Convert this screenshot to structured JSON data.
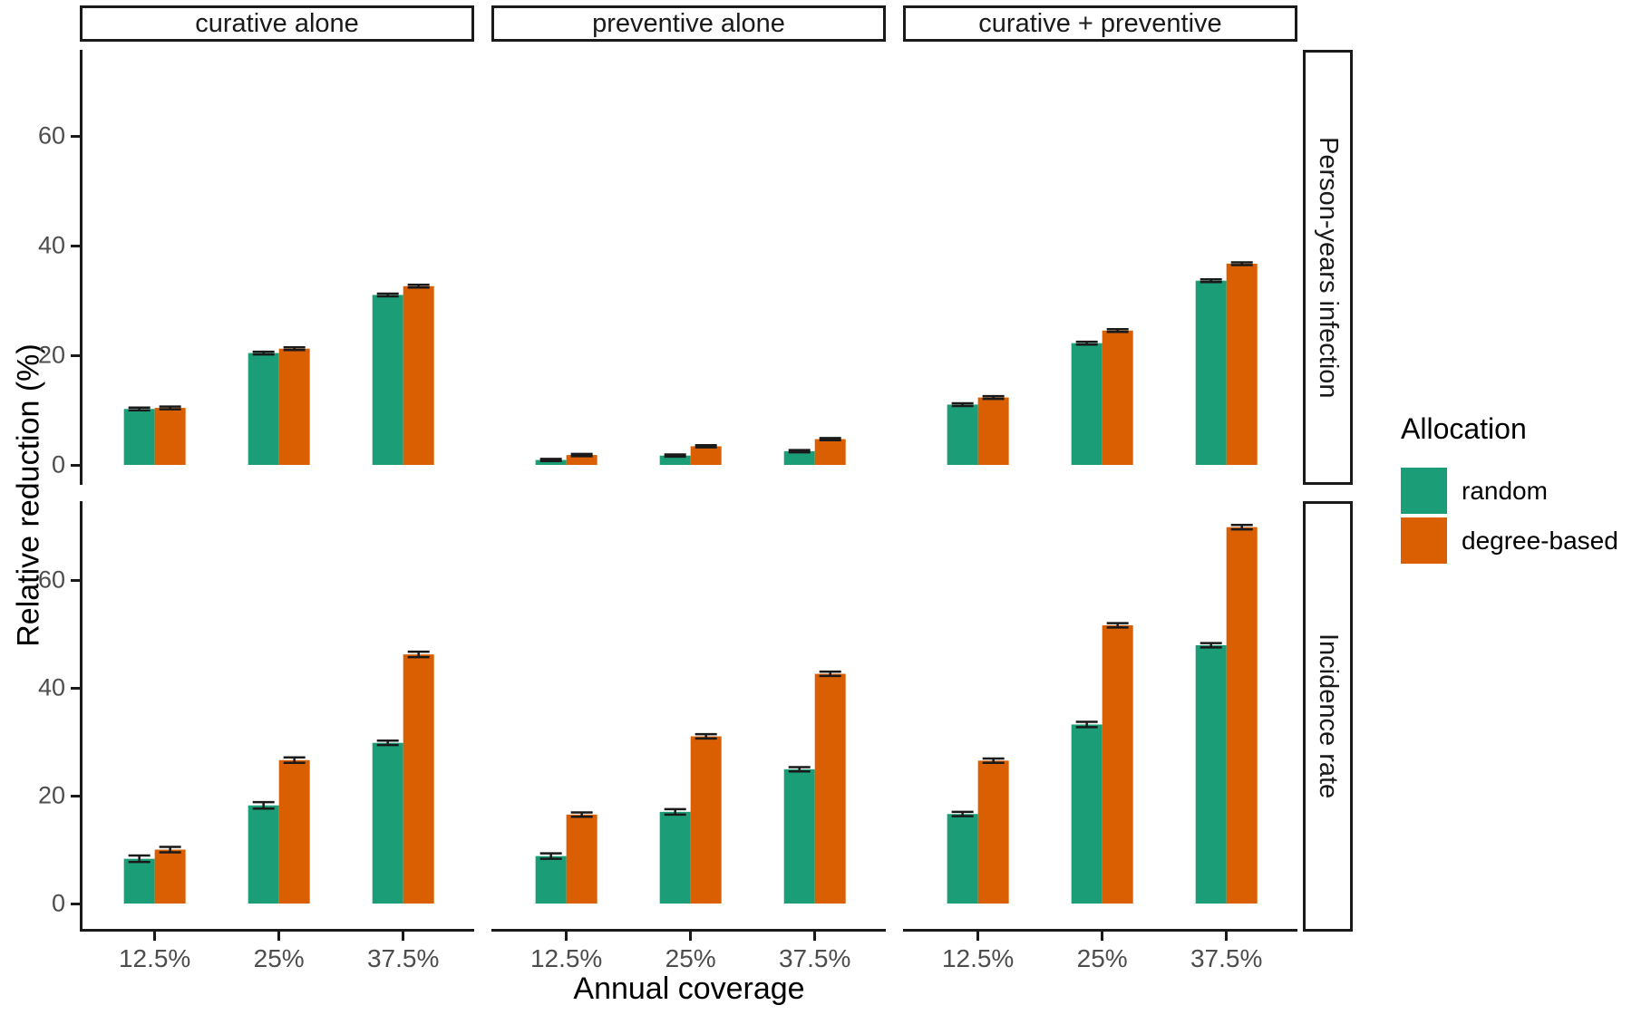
{
  "figure": {
    "background": "#ffffff",
    "axis_line_color": "#1a1a1a",
    "tick_label_color": "#4d4d4d"
  },
  "chart_data": {
    "type": "bar",
    "title": "",
    "xlabel": "Annual coverage",
    "ylabel": "Relative reduction (%)",
    "col_facets": [
      "curative alone",
      "preventive alone",
      "curative + preventive"
    ],
    "row_facets": [
      "Person-years infection",
      "Incidence rate"
    ],
    "categories": [
      "12.5%",
      "25%",
      "37.5%"
    ],
    "y_ticks": [
      0,
      20,
      40,
      60
    ],
    "ylim": [
      0,
      73
    ],
    "grid": false,
    "error_bars": true,
    "legend": {
      "title": "Allocation",
      "position": "right",
      "entries": [
        {
          "label": "random",
          "color": "#1B9E77"
        },
        {
          "label": "degree-based",
          "color": "#D95F02"
        }
      ]
    },
    "panels": [
      {
        "row": "Person-years infection",
        "col": "curative alone",
        "series": [
          {
            "name": "random",
            "color": "#1B9E77",
            "values": [
              10.2,
              20.4,
              31.0
            ],
            "errors": [
              0.25,
              0.25,
              0.25
            ]
          },
          {
            "name": "degree-based",
            "color": "#D95F02",
            "values": [
              10.4,
              21.2,
              32.6
            ],
            "errors": [
              0.25,
              0.25,
              0.25
            ]
          }
        ]
      },
      {
        "row": "Person-years infection",
        "col": "preventive alone",
        "series": [
          {
            "name": "random",
            "color": "#1B9E77",
            "values": [
              0.9,
              1.7,
              2.5
            ],
            "errors": [
              0.2,
              0.2,
              0.2
            ]
          },
          {
            "name": "degree-based",
            "color": "#D95F02",
            "values": [
              1.8,
              3.4,
              4.7
            ],
            "errors": [
              0.2,
              0.2,
              0.2
            ]
          }
        ]
      },
      {
        "row": "Person-years infection",
        "col": "curative + preventive",
        "series": [
          {
            "name": "random",
            "color": "#1B9E77",
            "values": [
              11.0,
              22.2,
              33.6
            ],
            "errors": [
              0.25,
              0.25,
              0.25
            ]
          },
          {
            "name": "degree-based",
            "color": "#D95F02",
            "values": [
              12.3,
              24.5,
              36.7
            ],
            "errors": [
              0.25,
              0.25,
              0.25
            ]
          }
        ]
      },
      {
        "row": "Incidence rate",
        "col": "curative alone",
        "series": [
          {
            "name": "random",
            "color": "#1B9E77",
            "values": [
              8.3,
              18.2,
              29.8
            ],
            "errors": [
              0.6,
              0.6,
              0.4
            ]
          },
          {
            "name": "degree-based",
            "color": "#D95F02",
            "values": [
              10.0,
              26.6,
              46.2
            ],
            "errors": [
              0.5,
              0.5,
              0.5
            ]
          }
        ]
      },
      {
        "row": "Incidence rate",
        "col": "preventive alone",
        "series": [
          {
            "name": "random",
            "color": "#1B9E77",
            "values": [
              8.8,
              17.0,
              24.9
            ],
            "errors": [
              0.5,
              0.5,
              0.4
            ]
          },
          {
            "name": "degree-based",
            "color": "#D95F02",
            "values": [
              16.5,
              31.0,
              42.6
            ],
            "errors": [
              0.4,
              0.4,
              0.4
            ]
          }
        ]
      },
      {
        "row": "Incidence rate",
        "col": "curative + preventive",
        "series": [
          {
            "name": "random",
            "color": "#1B9E77",
            "values": [
              16.6,
              33.2,
              47.9
            ],
            "errors": [
              0.4,
              0.5,
              0.4
            ]
          },
          {
            "name": "degree-based",
            "color": "#D95F02",
            "values": [
              26.5,
              51.6,
              69.8
            ],
            "errors": [
              0.4,
              0.4,
              0.4
            ]
          }
        ]
      }
    ]
  }
}
